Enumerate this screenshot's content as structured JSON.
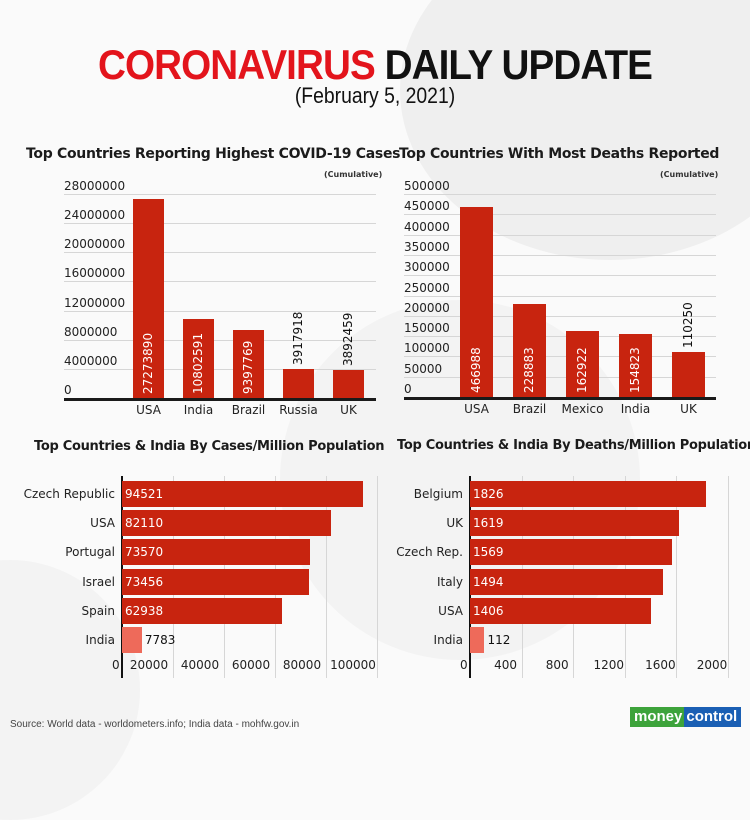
{
  "header": {
    "title_red": "CORONAVIRUS",
    "title_black": "DAILY UPDATE",
    "date": "(February 5, 2021)"
  },
  "colors": {
    "bar": "#c8240f",
    "india_bar": "#ee6a5a",
    "title_red": "#e3141c"
  },
  "charts": {
    "cases": {
      "title": "Top Countries Reporting Highest COVID-19 Cases",
      "note": "(Cumulative)"
    },
    "deaths": {
      "title": "Top Countries With Most Deaths Reported",
      "note": "(Cumulative)"
    },
    "cases_pm": {
      "title": "Top Countries & India By Cases/Million Population"
    },
    "deaths_pm": {
      "title": "Top Countries & India By Deaths/Million Population"
    }
  },
  "chart_data": [
    {
      "type": "bar",
      "title": "Top Countries Reporting Highest COVID-19 Cases",
      "subtitle": "(Cumulative)",
      "categories": [
        "USA",
        "India",
        "Brazil",
        "Russia",
        "UK"
      ],
      "values": [
        27273890,
        10802591,
        9397769,
        3917918,
        3892459
      ],
      "yticks": [
        0,
        4000000,
        8000000,
        12000000,
        16000000,
        20000000,
        24000000,
        28000000
      ],
      "ylim": [
        0,
        28000000
      ],
      "xlabel": "",
      "ylabel": "",
      "grid": true
    },
    {
      "type": "bar",
      "title": "Top Countries With Most Deaths Reported",
      "subtitle": "(Cumulative)",
      "categories": [
        "USA",
        "Brazil",
        "Mexico",
        "India",
        "UK"
      ],
      "values": [
        466988,
        228883,
        162922,
        154823,
        110250
      ],
      "yticks": [
        0,
        50000,
        100000,
        150000,
        200000,
        250000,
        300000,
        350000,
        400000,
        450000,
        500000
      ],
      "ylim": [
        0,
        500000
      ],
      "xlabel": "",
      "ylabel": "",
      "grid": true
    },
    {
      "type": "bar",
      "orientation": "horizontal",
      "title": "Top Countries & India By Cases/Million Population",
      "categories": [
        "Czech Republic",
        "USA",
        "Portugal",
        "Israel",
        "Spain",
        "India"
      ],
      "values": [
        94521,
        82110,
        73570,
        73456,
        62938,
        7783
      ],
      "xticks": [
        0,
        20000,
        40000,
        60000,
        80000,
        100000
      ],
      "xlim": [
        0,
        100000
      ],
      "grid": true
    },
    {
      "type": "bar",
      "orientation": "horizontal",
      "title": "Top Countries & India By Deaths/Million Population",
      "categories": [
        "Belgium",
        "UK",
        "Czech Rep.",
        "Italy",
        "USA",
        "India"
      ],
      "values": [
        1826,
        1619,
        1569,
        1494,
        1406,
        112
      ],
      "xticks": [
        0,
        400,
        800,
        1200,
        1600,
        2000
      ],
      "xlim": [
        0,
        2000
      ],
      "grid": true
    }
  ],
  "footer": {
    "source": "Source: World data - worldometers.info; India data - mohfw.gov.in",
    "logo_left": "money",
    "logo_right": "control"
  }
}
